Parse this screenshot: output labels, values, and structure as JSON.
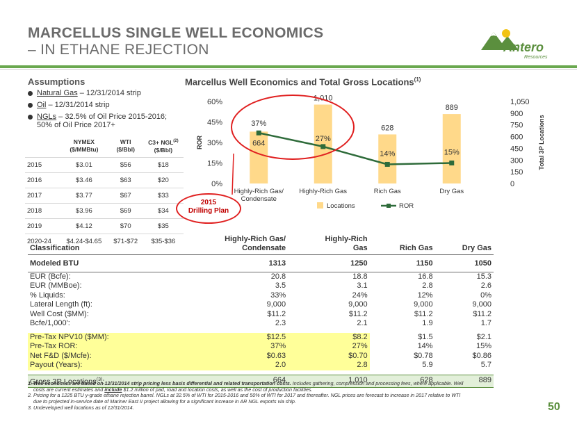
{
  "header": {
    "title_line1": "MARCELLUS SINGLE WELL ECONOMICS",
    "title_line2": "– IN ETHANE REJECTION",
    "logo_text": "Antero",
    "logo_sub": "Resources"
  },
  "assumptions": {
    "heading": "Assumptions",
    "bullets": [
      {
        "key": "Natural Gas",
        "text": " – 12/31/2014 strip"
      },
      {
        "key": "Oil",
        "text": " – 12/31/2014 strip"
      },
      {
        "key": "NGLs",
        "text": " – 32.5% of Oil Price 2015-2016;"
      }
    ],
    "bullet3_cont": "50% of Oil Price 2017+",
    "price_table": {
      "headers": [
        "",
        "NYMEX ($/MMBtu)",
        "WTI ($/Bbl)",
        "C3+ NGL",
        "($/Bbl)"
      ],
      "h1_line1": "NYMEX",
      "h1_line2": "($/MMBtu)",
      "h2_line1": "WTI",
      "h2_line2": "($/Bbl)",
      "h3_line1": "C3+ NGL",
      "h3_sup": "(2)",
      "h3_line2": "($/Bbl)",
      "rows": [
        [
          "2015",
          "$3.01",
          "$56",
          "$18"
        ],
        [
          "2016",
          "$3.46",
          "$63",
          "$20"
        ],
        [
          "2017",
          "$3.77",
          "$67",
          "$33"
        ],
        [
          "2018",
          "$3.96",
          "$69",
          "$34"
        ],
        [
          "2019",
          "$4.12",
          "$70",
          "$35"
        ],
        [
          "2020-24",
          "$4.24-$4.65",
          "$71-$72",
          "$35-$36"
        ]
      ]
    }
  },
  "chart_title": "Marcellus Well Economics and Total Gross Locations",
  "chart_title_sup": "(1)",
  "chart_data": {
    "type": "bar",
    "categories": [
      "Highly-Rich Gas/ Condensate",
      "Highly-Rich Gas",
      "Rich Gas",
      "Dry Gas"
    ],
    "series": [
      {
        "name": "Locations",
        "type": "bar",
        "axis": "right",
        "values": [
          664,
          1010,
          628,
          889
        ],
        "labels": [
          "664",
          "1,010",
          "628",
          "889"
        ],
        "color": "#ffd98a"
      },
      {
        "name": "ROR",
        "type": "line",
        "axis": "left",
        "values": [
          37,
          27,
          14,
          15
        ],
        "labels": [
          "37%",
          "27%",
          "14%",
          "15%"
        ],
        "color": "#2e6b3a"
      }
    ],
    "y_left": {
      "label": "ROR",
      "ticks": [
        "0%",
        "15%",
        "30%",
        "45%",
        "60%"
      ],
      "range": [
        0,
        60
      ]
    },
    "y_right": {
      "label": "Total 3P Locations",
      "ticks": [
        "0",
        "150",
        "300",
        "450",
        "600",
        "750",
        "900",
        "1,050"
      ],
      "range": [
        0,
        1050
      ]
    },
    "legend": [
      "Locations",
      "ROR"
    ],
    "legend_position": "bottom",
    "x_labels": [
      "Highly-Rich Gas/",
      "Condensate",
      "Highly-Rich Gas",
      "Rich Gas",
      "Dry Gas"
    ]
  },
  "annotation": {
    "line1": "2015",
    "line2": "Drilling Plan"
  },
  "economics": {
    "headers": [
      "Classification",
      "Highly-Rich Gas/",
      "Condensate",
      "Highly-Rich",
      "Gas",
      "Rich Gas",
      "Dry Gas"
    ],
    "modeled": [
      "Modeled BTU",
      "1313",
      "1250",
      "1150",
      "1050"
    ],
    "rows_a": [
      [
        "EUR (Bcfe):",
        "20.8",
        "18.8",
        "16.8",
        "15.3"
      ],
      [
        "EUR (MMBoe):",
        "3.5",
        "3.1",
        "2.8",
        "2.6"
      ],
      [
        " % Liquids:",
        "33%",
        "24%",
        "12%",
        "0%"
      ],
      [
        "Lateral Length (ft):",
        "9,000",
        "9,000",
        "9,000",
        "9,000"
      ],
      [
        "Well Cost ($MM):",
        "$11.2",
        "$11.2",
        "$11.2",
        "$11.2"
      ],
      [
        "Bcfe/1,000':",
        "2.3",
        "2.1",
        "1.9",
        "1.7"
      ]
    ],
    "rows_b": [
      [
        "Pre-Tax NPV10 ($MM):",
        "$12.5",
        "$8.2",
        "$1.5",
        "$2.1"
      ],
      [
        "Pre-Tax ROR:",
        "37%",
        "27%",
        "14%",
        "15%"
      ],
      [
        "Net F&D ($/Mcfe):",
        "$0.63",
        "$0.70",
        "$0.78",
        "$0.86"
      ],
      [
        "Payout (Years):",
        "2.0",
        "2.8",
        "5.9",
        "5.7"
      ]
    ],
    "gross": [
      "Gross 3P Locations",
      "664",
      "1,010",
      "628",
      "889"
    ],
    "gross_sup": "(3)",
    "gross_colon": ":"
  },
  "footnotes": {
    "f1a": "1.  Well economics are based on 12/31/2014 strip pricing less basis differential and related transportation costs.",
    "f1b": "  Includes gathering, compression and processing fees, where applicable. Well",
    "f1c": "costs are current estimates and ",
    "f1d": "include",
    "f1e": " $1.2 million of pad, road and location costs, as well as the cost of production facilities.",
    "f2": "2.  Pricing for a 1225 BTU y-grade ethane rejection barrel.  NGLs at 32.5% of WTI for 2015-2016 and 50% of WTI for 2017 and thereafter.  NGL prices are forecast to increase in 2017 relative to WTI",
    "f2b": "due to projected in-service date of Mariner East II project allowing for a significant increase in AR NGL exports via ship.",
    "f3": "3.  Undeveloped well locations as of 12/31/2014."
  },
  "page_number": "50"
}
